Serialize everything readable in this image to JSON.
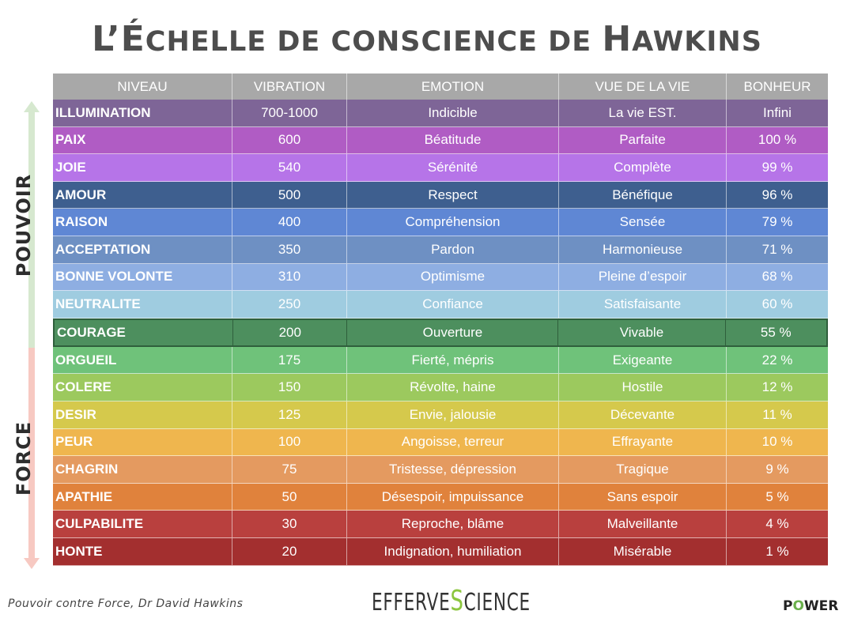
{
  "title_part1": "L’É",
  "title_part2": "CHELLE DE CONSCIENCE DE ",
  "title_part3": "H",
  "title_part4": "AWKINS",
  "side_top": "POUVOIR",
  "side_bottom": "FORCE",
  "colors": {
    "arrow_up": "#d6e8cf",
    "arrow_down": "#f7c9c2",
    "header_bg": "#a8a8a8"
  },
  "headers": [
    "NIVEAU",
    "VIBRATION",
    "EMOTION",
    "VUE DE LA VIE",
    "BONHEUR"
  ],
  "rows": [
    {
      "niveau": "ILLUMINATION",
      "vibration": "700-1000",
      "emotion": "Indicible",
      "vue": "La vie EST.",
      "bonheur": "Infini",
      "color": "#7e6597"
    },
    {
      "niveau": "PAIX",
      "vibration": "600",
      "emotion": "Béatitude",
      "vue": "Parfaite",
      "bonheur": "100 %",
      "color": "#b05cc4"
    },
    {
      "niveau": "JOIE",
      "vibration": "540",
      "emotion": "Sérénité",
      "vue": "Complète",
      "bonheur": "99 %",
      "color": "#b674e8"
    },
    {
      "niveau": "AMOUR",
      "vibration": "500",
      "emotion": "Respect",
      "vue": "Bénéfique",
      "bonheur": "96 %",
      "color": "#3e5f8f"
    },
    {
      "niveau": "RAISON",
      "vibration": "400",
      "emotion": "Compréhension",
      "vue": "Sensée",
      "bonheur": "79 %",
      "color": "#5f87d4"
    },
    {
      "niveau": "ACCEPTATION",
      "vibration": "350",
      "emotion": "Pardon",
      "vue": "Harmonieuse",
      "bonheur": "71 %",
      "color": "#6e90c3"
    },
    {
      "niveau": "BONNE VOLONTE",
      "vibration": "310",
      "emotion": "Optimisme",
      "vue": "Pleine d’espoir",
      "bonheur": "68 %",
      "color": "#8eaee2"
    },
    {
      "niveau": "NEUTRALITE",
      "vibration": "250",
      "emotion": "Confiance",
      "vue": "Satisfaisante",
      "bonheur": "60 %",
      "color": "#9fcce0"
    },
    {
      "niveau": "COURAGE",
      "vibration": "200",
      "emotion": "Ouverture",
      "vue": "Vivable",
      "bonheur": "55 %",
      "color": "#4d8f5e"
    },
    {
      "niveau": "ORGUEIL",
      "vibration": "175",
      "emotion": "Fierté, mépris",
      "vue": "Exigeante",
      "bonheur": "22 %",
      "color": "#6fc27a"
    },
    {
      "niveau": "COLERE",
      "vibration": "150",
      "emotion": "Révolte, haine",
      "vue": "Hostile",
      "bonheur": "12 %",
      "color": "#9cc95e"
    },
    {
      "niveau": "DESIR",
      "vibration": "125",
      "emotion": "Envie, jalousie",
      "vue": "Décevante",
      "bonheur": "11 %",
      "color": "#d5c94c"
    },
    {
      "niveau": "PEUR",
      "vibration": "100",
      "emotion": "Angoisse, terreur",
      "vue": "Effrayante",
      "bonheur": "10 %",
      "color": "#efb64e"
    },
    {
      "niveau": "CHAGRIN",
      "vibration": "75",
      "emotion": "Tristesse, dépression",
      "vue": "Tragique",
      "bonheur": "9 %",
      "color": "#e49a60"
    },
    {
      "niveau": "APATHIE",
      "vibration": "50",
      "emotion": "Désespoir, impuissance",
      "vue": "Sans espoir",
      "bonheur": "5 %",
      "color": "#e0823c"
    },
    {
      "niveau": "CULPABILITE",
      "vibration": "30",
      "emotion": "Reproche, blâme",
      "vue": "Malveillante",
      "bonheur": "4 %",
      "color": "#b9403e"
    },
    {
      "niveau": "HONTE",
      "vibration": "20",
      "emotion": "Indignation, humiliation",
      "vue": "Misérable",
      "bonheur": "1 %",
      "color": "#a32f2f"
    }
  ],
  "footer_left": "Pouvoir contre Force, Dr David Hawkins",
  "logo_part1": "EFFERVE",
  "logo_part2": "S",
  "logo_part3": "CIENCE",
  "power_part1": "P",
  "power_part2": "O",
  "power_part3": "WER"
}
